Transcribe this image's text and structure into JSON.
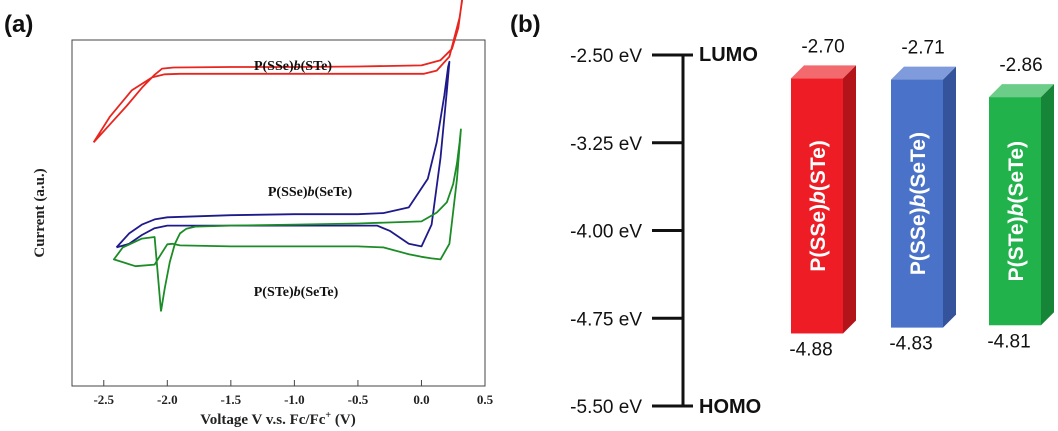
{
  "chart_data": [
    {
      "panel": "(a)",
      "type": "line",
      "xlabel_main": "Voltage V v.s. Fc/Fc",
      "xlabel_sup": "+",
      "xlabel_unit": " (V)",
      "ylabel": "Current (a.u.)",
      "xlim": [
        -2.75,
        0.5
      ],
      "xticks": [
        "-2.5",
        "-2.0",
        "-1.5",
        "-1.0",
        "-0.5",
        "0.0",
        "0.5"
      ],
      "xtick_values": [
        -2.5,
        -2.0,
        -1.5,
        -1.0,
        -0.5,
        0.0,
        0.5
      ],
      "series": [
        {
          "name_pre": "P(SSe)",
          "name_b": "b",
          "name_post": "(STe)",
          "color": "#e8251f",
          "x": [
            -2.58,
            -2.45,
            -2.32,
            -2.2,
            -2.1,
            -2.04,
            -1.95,
            -1.5,
            -1.0,
            -0.5,
            0.0,
            0.15,
            0.24,
            0.29,
            0.32,
            0.33,
            0.3,
            0.22,
            0.12,
            0.02,
            -0.5,
            -1.0,
            -1.5,
            -1.9,
            -2.02,
            -2.12,
            -2.28,
            -2.45,
            -2.58
          ],
          "y": [
            1.3,
            1.65,
            2.0,
            2.35,
            2.6,
            2.72,
            2.74,
            2.75,
            2.75,
            2.76,
            2.78,
            2.88,
            3.1,
            3.5,
            4.05,
            4.2,
            3.7,
            2.95,
            2.68,
            2.62,
            2.62,
            2.62,
            2.62,
            2.62,
            2.61,
            2.55,
            2.3,
            1.8,
            1.3
          ]
        },
        {
          "name_pre": "P(SSe)",
          "name_b": "b",
          "name_post": "(SeTe)",
          "color": "#1f1a8c",
          "x": [
            -2.4,
            -2.3,
            -2.2,
            -2.1,
            -2.0,
            -1.5,
            -1.0,
            -0.5,
            -0.3,
            -0.1,
            0.05,
            0.12,
            0.18,
            0.21,
            0.22,
            0.2,
            0.15,
            0.08,
            0.0,
            -0.1,
            -0.25,
            -0.35,
            -0.5,
            -1.0,
            -1.5,
            -2.0,
            -2.1,
            -2.2,
            -2.3,
            -2.4
          ],
          "y": [
            -0.72,
            -0.45,
            -0.28,
            -0.18,
            -0.14,
            -0.1,
            -0.08,
            -0.08,
            -0.06,
            0.05,
            0.6,
            1.3,
            2.2,
            2.75,
            2.85,
            2.3,
            1.0,
            -0.28,
            -0.7,
            -0.65,
            -0.4,
            -0.3,
            -0.3,
            -0.3,
            -0.3,
            -0.3,
            -0.35,
            -0.48,
            -0.65,
            -0.72
          ]
        },
        {
          "name_pre": "P(STe)",
          "name_b": "b",
          "name_post": "(SeTe)",
          "color": "#1b8c26",
          "x": [
            -2.05,
            -2.02,
            -1.98,
            -1.94,
            -1.9,
            -1.85,
            -1.78,
            -1.5,
            -1.0,
            -0.5,
            0.0,
            0.12,
            0.2,
            0.25,
            0.28,
            0.3,
            0.31,
            0.28,
            0.22,
            0.15,
            0.08,
            0.0,
            -0.1,
            -0.3,
            -0.5,
            -1.0,
            -1.5,
            -1.9,
            -1.96,
            -2.0,
            -2.05,
            -2.1,
            -2.25,
            -2.42,
            -2.35,
            -2.2,
            -2.1,
            -2.05
          ],
          "y": [
            -1.95,
            -1.5,
            -1.0,
            -0.65,
            -0.45,
            -0.36,
            -0.32,
            -0.3,
            -0.28,
            -0.26,
            -0.22,
            -0.05,
            0.15,
            0.5,
            0.9,
            1.3,
            1.55,
            0.6,
            -0.65,
            -0.95,
            -0.93,
            -0.9,
            -0.85,
            -0.72,
            -0.7,
            -0.7,
            -0.7,
            -0.68,
            -0.65,
            -0.66,
            -0.85,
            -1.05,
            -1.08,
            -0.95,
            -0.72,
            -0.55,
            -0.52,
            -1.95
          ]
        }
      ]
    },
    {
      "panel": "(b)",
      "type": "bar",
      "axis_ticks": [
        "-2.50 eV",
        "-3.25 eV",
        "-4.00 eV",
        "-4.75 eV",
        "-5.50 eV"
      ],
      "axis_tick_values": [
        -2.5,
        -3.25,
        -4.0,
        -4.75,
        -5.5
      ],
      "top_label": "LUMO",
      "bottom_label": "HOMO",
      "bars": [
        {
          "name": "P(SSe)b(STe)",
          "name_pre": "P(SSe)",
          "name_b": "b",
          "name_post": "(STe)",
          "lumo": -2.7,
          "homo": -4.88,
          "lumo_label": "-2.70",
          "homo_label": "-4.88",
          "color": "#ee1c24",
          "top_color": "#f26a6e",
          "side_color": "#b3141a"
        },
        {
          "name": "P(SSe)b(SeTe)",
          "name_pre": "P(SSe)",
          "name_b": "b",
          "name_post": "(SeTe)",
          "lumo": -2.71,
          "homo": -4.83,
          "lumo_label": "-2.71",
          "homo_label": "-4.83",
          "color": "#4a72c8",
          "top_color": "#7f9bdb",
          "side_color": "#34539a"
        },
        {
          "name": "P(STe)b(SeTe)",
          "name_pre": "P(STe)",
          "name_b": "b",
          "name_post": "(SeTe)",
          "lumo": -2.86,
          "homo": -4.81,
          "lumo_label": "-2.86",
          "homo_label": "-4.81",
          "color": "#22b24c",
          "top_color": "#6bcd88",
          "side_color": "#178538"
        }
      ]
    }
  ]
}
